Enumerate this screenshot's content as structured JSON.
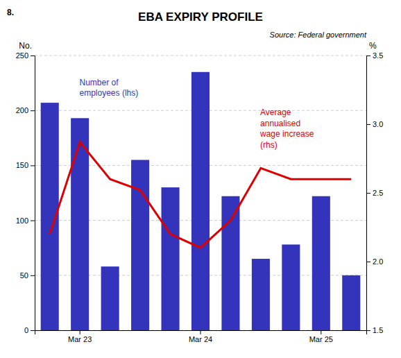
{
  "chart_data": {
    "type": "bar",
    "title": "EBA EXPIRY PROFILE",
    "ylabel": "No.",
    "y2label": "%",
    "annotations": [
      "8.",
      "Source: Federal government"
    ],
    "categories": [
      null,
      "Mar 23",
      null,
      null,
      null,
      "Mar 24",
      null,
      null,
      null,
      "Mar 25",
      null
    ],
    "series": [
      {
        "name": "Number of\nemployees (lhs)",
        "type": "bar",
        "color": "#3333BB",
        "values": [
          207,
          193,
          58,
          155,
          130,
          235,
          122,
          65,
          78,
          122,
          50
        ]
      },
      {
        "name": "Average\nannualised\nwage increase\n(rhs)",
        "type": "line",
        "color": "#DD0000",
        "axis": "y2",
        "values": [
          2.2,
          2.87,
          2.6,
          2.52,
          2.2,
          2.1,
          2.3,
          2.68,
          2.6,
          2.6,
          2.6
        ]
      }
    ],
    "ylim": [
      0,
      250
    ],
    "yticks": [
      0,
      50,
      100,
      150,
      200,
      250
    ],
    "y2lim": [
      1.5,
      3.5
    ],
    "y2ticks": [
      1.5,
      {
        "value": 2.0,
        "label": "2.0"
      },
      2.5,
      {
        "value": 3.0,
        "label": "3.0"
      },
      3.5
    ],
    "grid": true
  }
}
